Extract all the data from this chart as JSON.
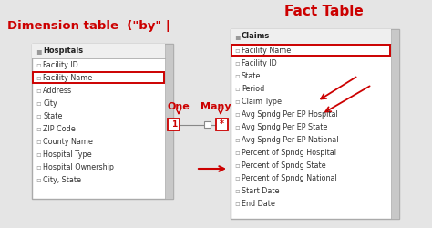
{
  "bg_color": "#e5e5e5",
  "dim_title": "Dimension table  (\"by\" |",
  "fact_title": "Fact Table",
  "dim_table_header": "Hospitals",
  "dim_fields": [
    "Facility ID",
    "Facility Name",
    "Address",
    "City",
    "State",
    "ZIP Code",
    "County Name",
    "Hospital Type",
    "Hospital Ownership",
    "City, State"
  ],
  "dim_highlighted": "Facility Name",
  "fact_table_header": "Claims",
  "fact_fields": [
    "Facility Name",
    "Facility ID",
    "State",
    "Period",
    "Claim Type",
    "Avg Spndg Per EP Hospital",
    "Avg Spndg Per EP State",
    "Avg Spndg Per EP National",
    "Percent of Spndg Hospital",
    "Percent of Spndg State",
    "Percent of Spndg National",
    "Start Date",
    "End Date"
  ],
  "fact_highlighted": "Facility Name",
  "one_label": "One",
  "many_label": "Many",
  "red_color": "#cc0000",
  "table_border": "#aaaaaa",
  "field_icon_color": "#999999",
  "scrollbar_color": "#c8c8c8",
  "scrollbar_border": "#aaaaaa",
  "header_bg": "#efefef",
  "white": "#ffffff",
  "field_text": "#333333",
  "connector_color": "#888888",
  "arrow_color": "#cc0000"
}
